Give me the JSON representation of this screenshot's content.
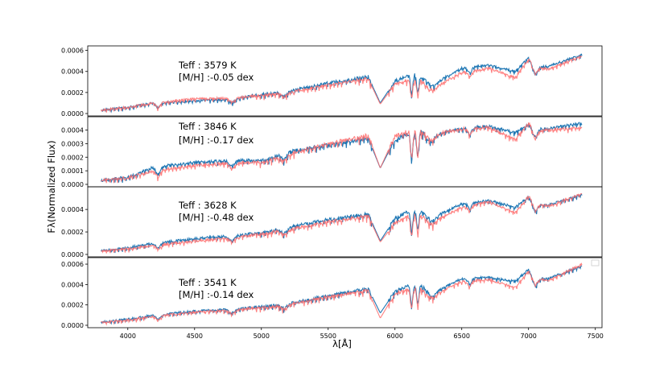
{
  "chart_data": {
    "type": "line",
    "xlabel": "λ[Å]",
    "ylabel": "Fλ(Normalized Flux)",
    "xlim": [
      3700,
      7550
    ],
    "x_ticks": [
      "4000",
      "4500",
      "5000",
      "5500",
      "6000",
      "6500",
      "7000",
      "7500"
    ],
    "legend": "empty legend box at top-right of bottom panel",
    "colors": {
      "observed": "#1f77b4",
      "model": "#ff6b6b"
    },
    "panels": [
      {
        "teff_label": "Teff : 3579 K",
        "mh_label": "[M/H] :-0.05 dex",
        "ylim": [
          0,
          0.00062
        ],
        "y_ticks": [
          "0.0000",
          "0.0002",
          "0.0004",
          "0.0006"
        ],
        "x": [
          3800,
          4000,
          4200,
          4500,
          4800,
          5000,
          5200,
          5500,
          5800,
          5890,
          6000,
          6150,
          6300,
          6500,
          6700,
          6900,
          7000,
          7050,
          7150,
          7400
        ],
        "series": [
          {
            "values": [
              3e-05,
              6e-05,
              0.0001,
              0.00012,
              0.00014,
              0.00018,
              0.00021,
              0.00029,
              0.00035,
              0.0001,
              0.00031,
              0.00038,
              0.00029,
              0.00043,
              0.00046,
              0.0004,
              0.00053,
              0.00044,
              0.00045,
              0.00056
            ]
          },
          {
            "values": [
              3e-05,
              6e-05,
              0.0001,
              0.00014,
              0.00015,
              0.00017,
              0.0002,
              0.00027,
              0.00033,
              9e-05,
              0.00028,
              0.00033,
              0.00025,
              0.00039,
              0.00043,
              0.00034,
              0.00052,
              0.00045,
              0.00042,
              0.00055
            ]
          }
        ]
      },
      {
        "teff_label": "Teff : 3846 K",
        "mh_label": "[M/H] :-0.17 dex",
        "ylim": [
          0,
          0.00048
        ],
        "y_ticks": [
          "0.0000",
          "0.0001",
          "0.0002",
          "0.0003",
          "0.0004"
        ],
        "x": [
          3800,
          4000,
          4200,
          4500,
          4800,
          5000,
          5200,
          5500,
          5800,
          5890,
          6000,
          6150,
          6300,
          6500,
          6700,
          6900,
          7000,
          7050,
          7150,
          7400
        ],
        "series": [
          {
            "values": [
              3e-05,
              5e-05,
              0.00013,
              0.00016,
              0.00018,
              0.00017,
              0.00024,
              0.00029,
              0.00034,
              0.00012,
              0.00033,
              0.00039,
              0.00037,
              0.00041,
              0.00043,
              0.00038,
              0.00044,
              0.00041,
              0.00041,
              0.00045
            ]
          },
          {
            "values": [
              3e-05,
              5e-05,
              0.0001,
              0.00014,
              0.00016,
              0.00016,
              0.00022,
              0.0003,
              0.00036,
              0.00012,
              0.00036,
              0.0004,
              0.00037,
              0.00041,
              0.00042,
              0.00033,
              0.00045,
              0.0004,
              0.0004,
              0.00042
            ]
          }
        ]
      },
      {
        "teff_label": "Teff : 3628 K",
        "mh_label": "[M/H] :-0.48 dex",
        "ylim": [
          0,
          0.00058
        ],
        "y_ticks": [
          "0.0000",
          "0.0002",
          "0.0004"
        ],
        "x": [
          3800,
          4000,
          4200,
          4500,
          4800,
          5000,
          5200,
          5500,
          5800,
          5890,
          6000,
          6150,
          6300,
          6500,
          6700,
          6900,
          7000,
          7050,
          7150,
          7400
        ],
        "series": [
          {
            "values": [
              3e-05,
              6e-05,
              0.0001,
              0.00014,
              0.00017,
              0.00019,
              0.00024,
              0.00031,
              0.00036,
              0.00012,
              0.00032,
              0.00041,
              0.00034,
              0.00045,
              0.00048,
              0.00042,
              0.00051,
              0.00045,
              0.00044,
              0.00053
            ]
          },
          {
            "values": [
              3e-05,
              5e-05,
              8e-05,
              0.00012,
              0.00015,
              0.00018,
              0.00022,
              0.00029,
              0.00034,
              0.00011,
              0.00028,
              0.00036,
              0.0003,
              0.00042,
              0.00047,
              0.00037,
              0.00052,
              0.00046,
              0.00043,
              0.00054
            ]
          }
        ]
      },
      {
        "teff_label": "Teff : 3541 K",
        "mh_label": "[M/H] :-0.14 dex",
        "ylim": [
          0,
          0.00064
        ],
        "y_ticks": [
          "0.0000",
          "0.0002",
          "0.0004",
          "0.0006"
        ],
        "x": [
          3800,
          4000,
          4200,
          4500,
          4800,
          5000,
          5200,
          5500,
          5800,
          5890,
          6000,
          6150,
          6300,
          6500,
          6700,
          6900,
          7000,
          7050,
          7150,
          7400
        ],
        "series": [
          {
            "values": [
              3e-05,
              6e-05,
              0.0001,
              0.00014,
              0.00016,
              0.00018,
              0.00021,
              0.00029,
              0.00036,
              0.00012,
              0.00033,
              0.00041,
              0.00033,
              0.00046,
              0.00047,
              0.00043,
              0.00055,
              0.00045,
              0.00046,
              0.00058
            ]
          },
          {
            "values": [
              3e-05,
              5e-05,
              9e-05,
              0.00013,
              0.00015,
              0.00017,
              0.0002,
              0.00028,
              0.00034,
              7e-05,
              0.00031,
              0.00037,
              0.0003,
              0.00043,
              0.00045,
              0.00037,
              0.00053,
              0.00047,
              0.00044,
              0.0006
            ]
          }
        ]
      }
    ]
  }
}
